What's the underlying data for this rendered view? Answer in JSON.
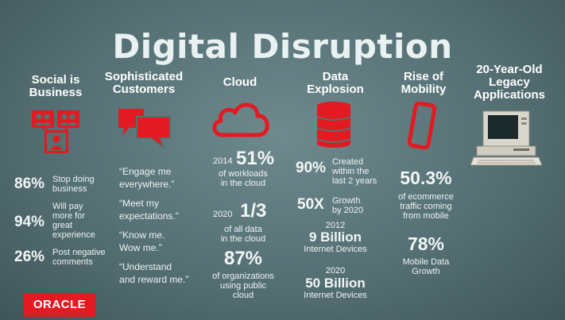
{
  "title": "Digital Disruption",
  "columns": {
    "social": {
      "heading_line1": "Social is",
      "heading_line2": "Business",
      "stats": [
        {
          "value": "86%",
          "label_lines": [
            "Stop doing",
            "business"
          ]
        },
        {
          "value": "94%",
          "label_lines": [
            "Will pay",
            "more for",
            "great",
            "experience"
          ]
        },
        {
          "value": "26%",
          "label_lines": [
            "Post negative",
            "comments"
          ]
        }
      ]
    },
    "customers": {
      "heading_line1": "Sophisticated",
      "heading_line2": "Customers",
      "quotes": [
        {
          "lines": [
            "“Engage me",
            "everywhere.”"
          ]
        },
        {
          "lines": [
            "“Meet my",
            "expectations.”"
          ]
        },
        {
          "lines": [
            "“Know me.",
            "Wow me.”"
          ]
        },
        {
          "lines": [
            "“Understand",
            "and reward me.”"
          ]
        }
      ]
    },
    "cloud": {
      "heading": "Cloud",
      "stats": [
        {
          "year": "2014",
          "value": "51%",
          "label_lines": [
            "of workloads",
            "in the cloud"
          ]
        },
        {
          "year": "2020",
          "value": "1/3",
          "label_lines": [
            "of all data",
            "in the cloud"
          ]
        },
        {
          "value": "87%",
          "label_lines": [
            "of organizations",
            "using public",
            "cloud"
          ]
        }
      ]
    },
    "data": {
      "heading_line1": "Data",
      "heading_line2": "Explosion",
      "stats": [
        {
          "value": "90%",
          "label_lines": [
            "Created",
            "within the",
            "last 2 years"
          ]
        },
        {
          "value": "50X",
          "label_lines": [
            "Growth",
            "by 2020"
          ]
        },
        {
          "year": "2012",
          "value": "9 Billion",
          "label": "Internet Devices"
        },
        {
          "year": "2020",
          "value": "50 Billion",
          "label": "Internet Devices"
        }
      ]
    },
    "mobility": {
      "heading_line1": "Rise of",
      "heading_line2": "Mobility",
      "stats": [
        {
          "value": "50.3%",
          "label_lines": [
            "of ecommerce",
            "traffic coming",
            "from mobile"
          ]
        },
        {
          "value": "78%",
          "label_lines": [
            "Mobile Data",
            "Growth"
          ]
        }
      ]
    },
    "legacy": {
      "heading_lines": [
        "20-Year-Old",
        "Legacy",
        "Applications"
      ]
    }
  },
  "logo": {
    "text": "ORACLE"
  },
  "colors": {
    "accent": "#e21b22",
    "text": "#ffffff"
  }
}
